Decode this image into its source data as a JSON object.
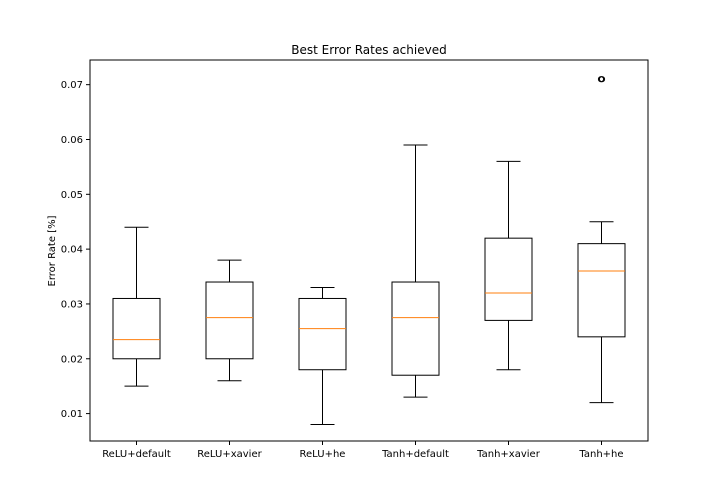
{
  "chart_data": {
    "type": "box",
    "title": "Best Error Rates achieved",
    "xlabel": "",
    "ylabel": "Error Rate [%]",
    "ylim": [
      0.005,
      0.0745
    ],
    "yticks": [
      "0.01",
      "0.02",
      "0.03",
      "0.04",
      "0.05",
      "0.06",
      "0.07"
    ],
    "grid": false,
    "colors": {
      "box": "#000000",
      "median": "#ff7f0e",
      "background": "#ffffff"
    },
    "categories": [
      "ReLU+default",
      "ReLU+xavier",
      "ReLU+he",
      "Tanh+default",
      "Tanh+xavier",
      "Tanh+he"
    ],
    "boxes": [
      {
        "category": "ReLU+default",
        "whisker_low": 0.015,
        "q1": 0.02,
        "median": 0.0235,
        "q3": 0.031,
        "whisker_high": 0.044,
        "outliers": []
      },
      {
        "category": "ReLU+xavier",
        "whisker_low": 0.016,
        "q1": 0.02,
        "median": 0.0275,
        "q3": 0.034,
        "whisker_high": 0.038,
        "outliers": []
      },
      {
        "category": "ReLU+he",
        "whisker_low": 0.008,
        "q1": 0.018,
        "median": 0.0255,
        "q3": 0.031,
        "whisker_high": 0.033,
        "outliers": []
      },
      {
        "category": "Tanh+default",
        "whisker_low": 0.013,
        "q1": 0.017,
        "median": 0.0275,
        "q3": 0.034,
        "whisker_high": 0.059,
        "outliers": []
      },
      {
        "category": "Tanh+xavier",
        "whisker_low": 0.018,
        "q1": 0.027,
        "median": 0.032,
        "q3": 0.042,
        "whisker_high": 0.056,
        "outliers": []
      },
      {
        "category": "Tanh+he",
        "whisker_low": 0.012,
        "q1": 0.024,
        "median": 0.036,
        "q3": 0.041,
        "whisker_high": 0.045,
        "outliers": [
          0.071,
          0.071
        ]
      }
    ]
  }
}
